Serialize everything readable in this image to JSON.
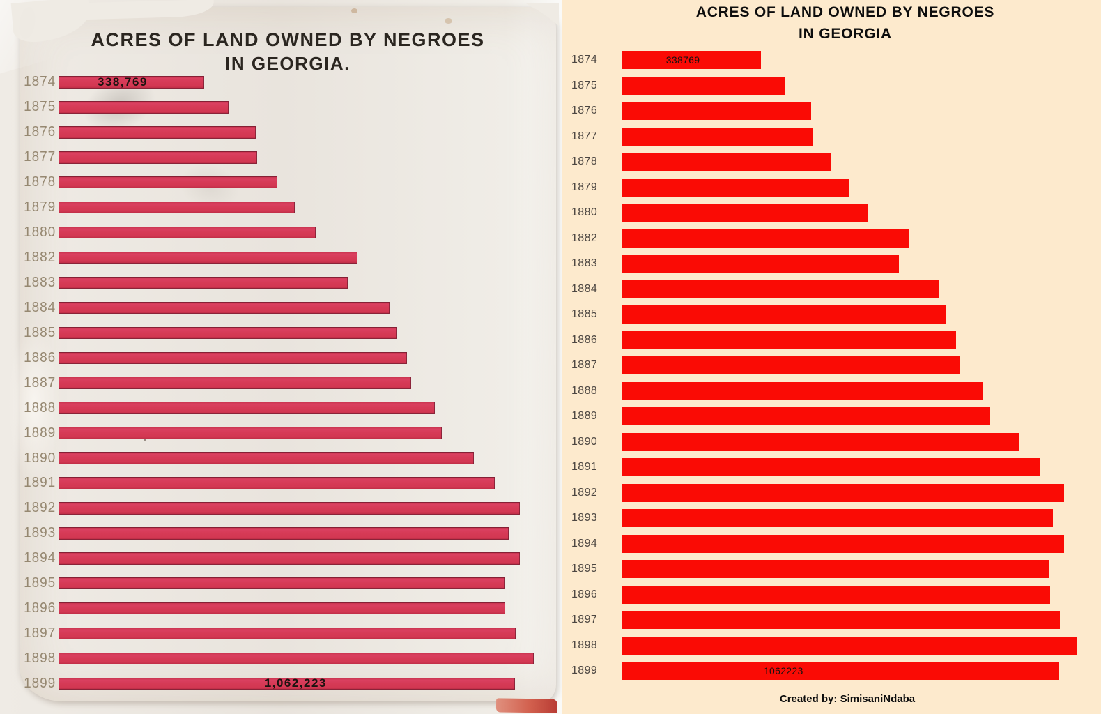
{
  "left_panel": {
    "title_line1": "ACRES OF LAND OWNED BY NEGROES",
    "title_line2": "IN GEORGIA.",
    "first_bar_label": "338,769",
    "last_bar_label": "1,062,223",
    "bar_color": "#d63a56",
    "paper_color": "#e5d6c2",
    "year_label_color": "#968871"
  },
  "right_panel": {
    "title_line1": "ACRES OF LAND OWNED BY NEGROES",
    "title_line2": "IN GEORGIA",
    "first_bar_label": "338769",
    "last_bar_label": "1062223",
    "credit": "Created by: SimisaniNdaba",
    "bar_color": "#fa0b05",
    "background_color": "#fdeacd",
    "year_label_color": "#4c4641"
  },
  "chart_data": {
    "type": "bar",
    "orientation": "horizontal",
    "title": "ACRES OF LAND OWNED BY NEGROES IN GEORGIA",
    "categories": [
      "1874",
      "1875",
      "1876",
      "1877",
      "1878",
      "1879",
      "1880",
      "1882",
      "1883",
      "1884",
      "1885",
      "1886",
      "1887",
      "1888",
      "1889",
      "1890",
      "1891",
      "1892",
      "1893",
      "1894",
      "1895",
      "1896",
      "1897",
      "1898",
      "1899"
    ],
    "values": [
      338769,
      396000,
      460000,
      463000,
      510000,
      551000,
      599000,
      697000,
      673000,
      771000,
      788000,
      812000,
      821000,
      877000,
      893000,
      967000,
      1016000,
      1074000,
      1048000,
      1074000,
      1039000,
      1041000,
      1064000,
      1107000,
      1062223
    ],
    "labeled_points": {
      "1874": 338769,
      "1899": 1062223
    },
    "values_note": "Only 1874 and 1899 are labeled in the image; other values estimated from bar lengths",
    "xlim": [
      0,
      1149000
    ],
    "grid": false,
    "legend": false
  }
}
